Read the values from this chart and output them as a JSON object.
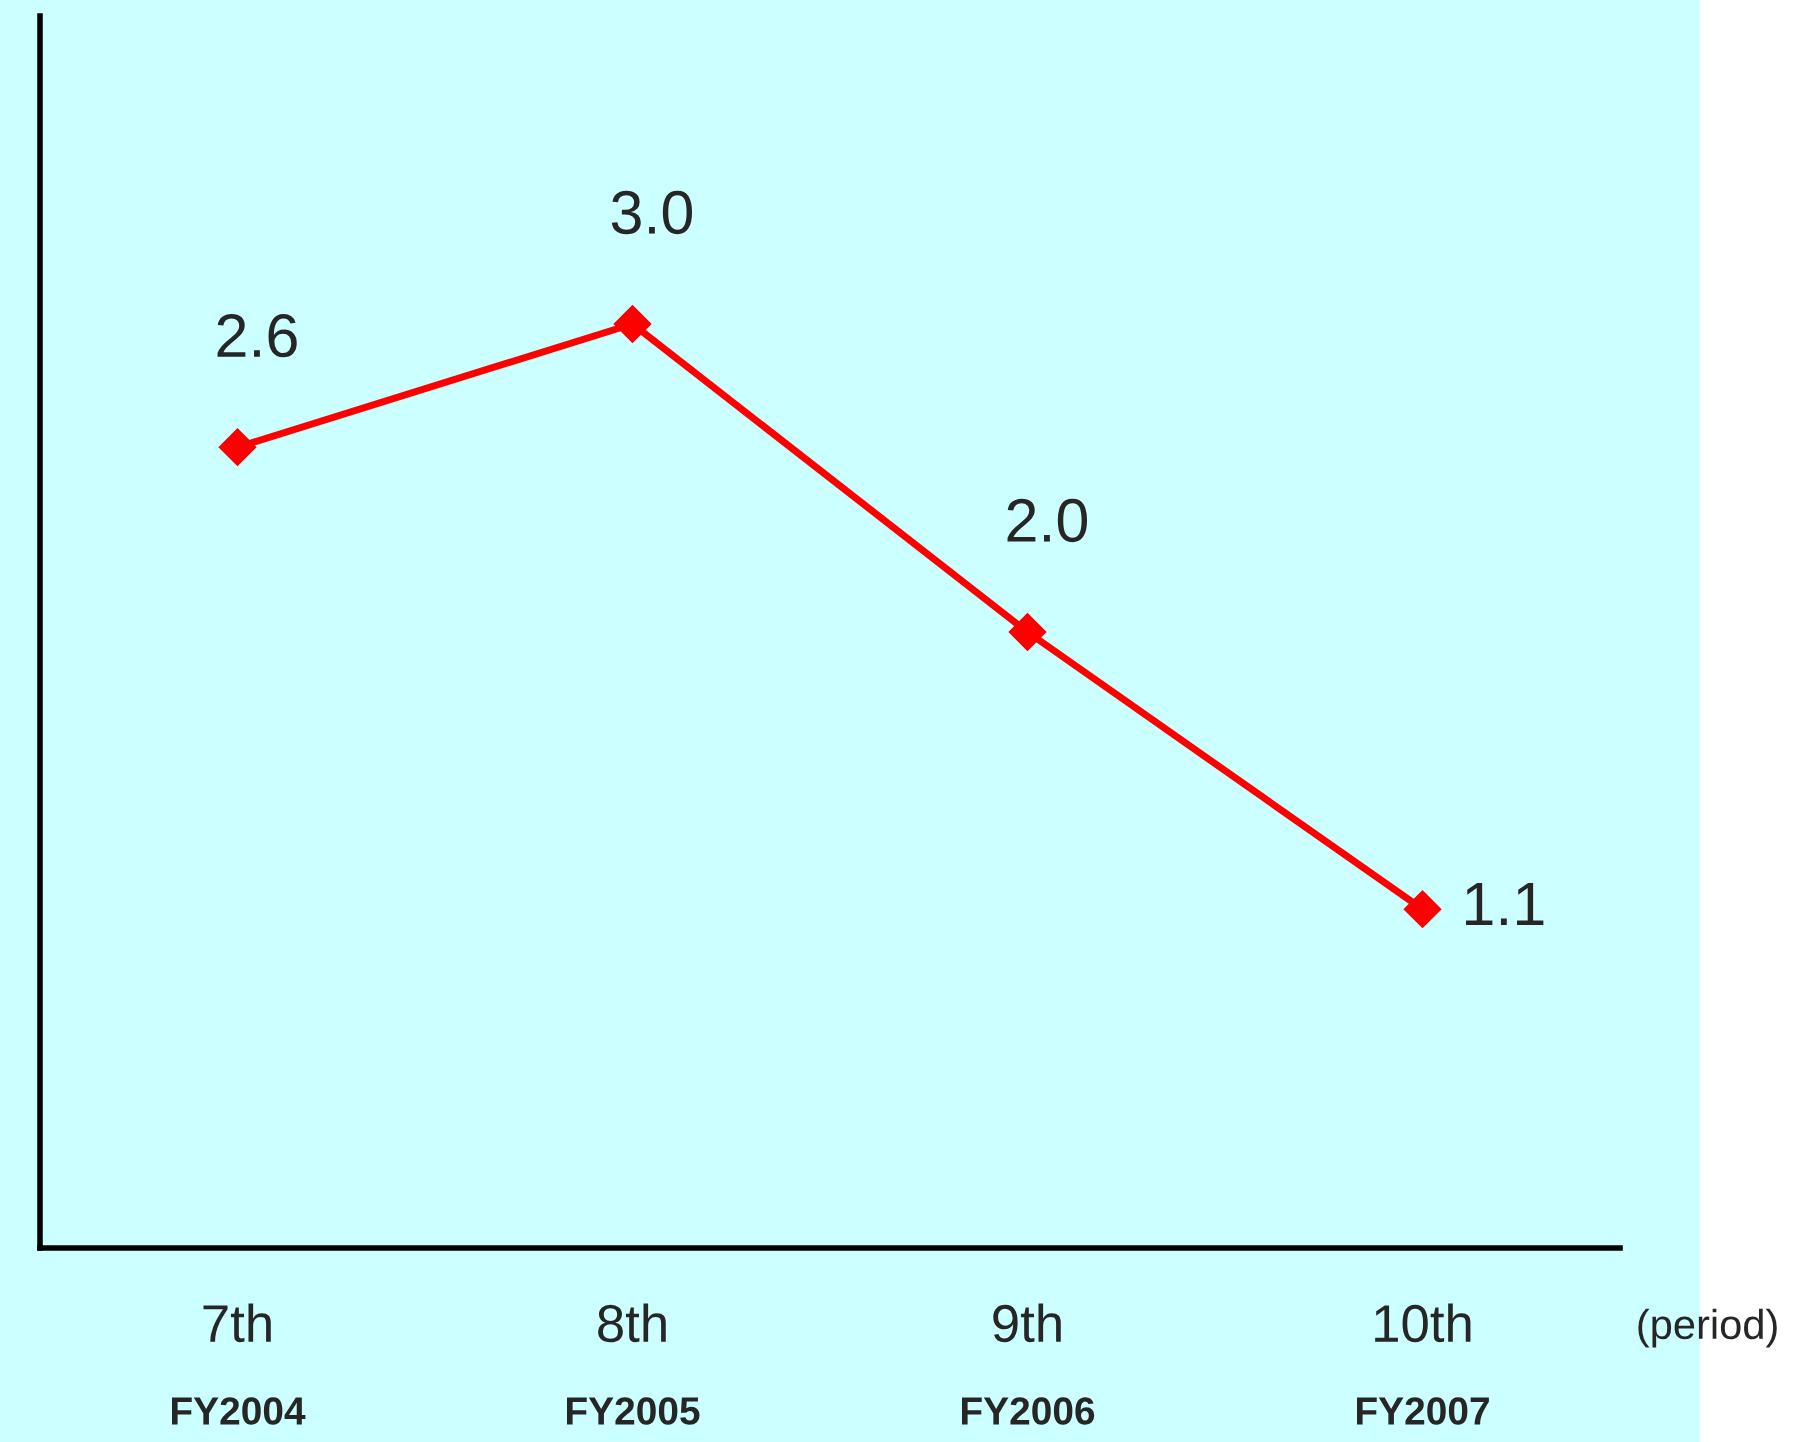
{
  "chart_data": {
    "type": "line",
    "categories": [
      "7th\nFY2004",
      "8th\nFY2005",
      "9th\nFY2006",
      "10th\nFY2007"
    ],
    "series": [
      {
        "color": "#ff0000",
        "values": [
          2.6,
          3.0,
          2.0,
          1.1
        ],
        "value_labels": [
          "2.6",
          "3.0",
          "2.0",
          "1.1"
        ]
      }
    ],
    "xlabel": "(period)",
    "ylim": [
      0,
      4
    ],
    "tick_labels": "x",
    "marker": "diamond",
    "line_style": "solid",
    "grid": false,
    "legend": false
  }
}
